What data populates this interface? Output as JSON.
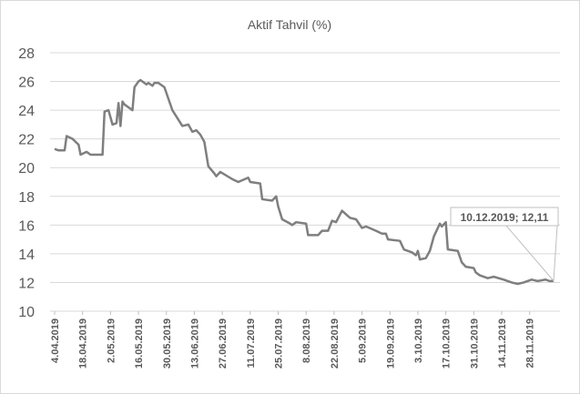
{
  "chart_data": {
    "type": "line",
    "title": "Aktif Tahvil (%)",
    "x": [
      "4.04.2019",
      "6.04.2019",
      "9.04.2019",
      "10.04.2019",
      "13.04.2019",
      "16.04.2019",
      "17.04.2019",
      "20.04.2019",
      "22.04.2019",
      "28.04.2019",
      "29.04.2019",
      "1.05.2019",
      "3.05.2019",
      "5.05.2019",
      "6.05.2019",
      "7.05.2019",
      "8.05.2019",
      "9.05.2019",
      "13.05.2019",
      "14.05.2019",
      "16.05.2019",
      "17.05.2019",
      "20.05.2019",
      "21.05.2019",
      "23.05.2019",
      "24.05.2019",
      "26.05.2019",
      "29.05.2019",
      "31.05.2019",
      "2.06.2019",
      "7.06.2019",
      "10.06.2019",
      "12.06.2019",
      "14.06.2019",
      "16.06.2019",
      "18.06.2019",
      "20.06.2019",
      "23.06.2019",
      "24.06.2019",
      "26.06.2019",
      "2.07.2019",
      "5.07.2019",
      "10.07.2019",
      "11.07.2019",
      "16.07.2019",
      "17.07.2019",
      "22.07.2019",
      "24.07.2019",
      "25.07.2019",
      "27.07.2019",
      "31.07.2019",
      "1.08.2019",
      "3.08.2019",
      "8.08.2019",
      "9.08.2019",
      "14.08.2019",
      "16.08.2019",
      "19.08.2019",
      "21.08.2019",
      "23.08.2019",
      "26.08.2019",
      "30.08.2019",
      "2.09.2019",
      "5.09.2019",
      "7.09.2019",
      "12.09.2019",
      "15.09.2019",
      "17.09.2019",
      "18.09.2019",
      "24.09.2019",
      "26.09.2019",
      "30.09.2019",
      "2.10.2019",
      "3.10.2019",
      "4.10.2019",
      "7.10.2019",
      "9.10.2019",
      "11.10.2019",
      "13.10.2019",
      "14.10.2019",
      "15.10.2019",
      "17.10.2019",
      "18.10.2019",
      "23.10.2019",
      "25.10.2019",
      "27.10.2019",
      "31.10.2019",
      "1.11.2019",
      "3.11.2019",
      "7.11.2019",
      "10.11.2019",
      "15.11.2019",
      "19.11.2019",
      "22.11.2019",
      "25.11.2019",
      "29.11.2019",
      "2.12.2019",
      "6.12.2019",
      "8.12.2019",
      "10.12.2019"
    ],
    "series": [
      {
        "name": "Aktif Tahvil (%)",
        "color": "#7f7f7f",
        "values": [
          21.3,
          21.2,
          21.2,
          22.2,
          22.0,
          21.6,
          20.9,
          21.1,
          20.9,
          20.9,
          23.9,
          24.0,
          23.0,
          23.1,
          24.5,
          22.9,
          24.6,
          24.4,
          24.0,
          25.6,
          26.0,
          26.1,
          25.8,
          25.9,
          25.7,
          25.9,
          25.9,
          25.6,
          24.8,
          24.0,
          22.9,
          23.0,
          22.5,
          22.6,
          22.3,
          21.8,
          20.1,
          19.6,
          19.4,
          19.7,
          19.2,
          19.0,
          19.3,
          19.0,
          18.9,
          17.8,
          17.7,
          18.0,
          17.3,
          16.4,
          16.1,
          16.0,
          16.2,
          16.1,
          15.3,
          15.3,
          15.6,
          15.6,
          16.3,
          16.2,
          17.0,
          16.5,
          16.4,
          15.8,
          15.9,
          15.6,
          15.4,
          15.4,
          15.0,
          14.9,
          14.3,
          14.1,
          13.9,
          14.2,
          13.6,
          13.7,
          14.2,
          15.2,
          15.8,
          16.1,
          15.9,
          16.2,
          14.3,
          14.2,
          13.4,
          13.1,
          13.0,
          12.7,
          12.5,
          12.3,
          12.4,
          12.2,
          12.0,
          11.9,
          12.0,
          12.2,
          12.1,
          12.2,
          12.1,
          12.11
        ]
      }
    ],
    "xlim": [
      "4.04.2019",
      "10.12.2019"
    ],
    "xticks": [
      "4.04.2019",
      "18.04.2019",
      "2.05.2019",
      "16.05.2019",
      "30.05.2019",
      "13.06.2019",
      "27.06.2019",
      "11.07.2019",
      "25.07.2019",
      "8.08.2019",
      "22.08.2019",
      "5.09.2019",
      "19.09.2019",
      "3.10.2019",
      "17.10.2019",
      "31.10.2019",
      "14.11.2019",
      "28.11.2019"
    ],
    "ylim": [
      10,
      28
    ],
    "yticks": [
      10,
      12,
      14,
      16,
      18,
      20,
      22,
      24,
      26,
      28
    ],
    "grid": true,
    "annotation": "10.12.2019; 12,11"
  }
}
